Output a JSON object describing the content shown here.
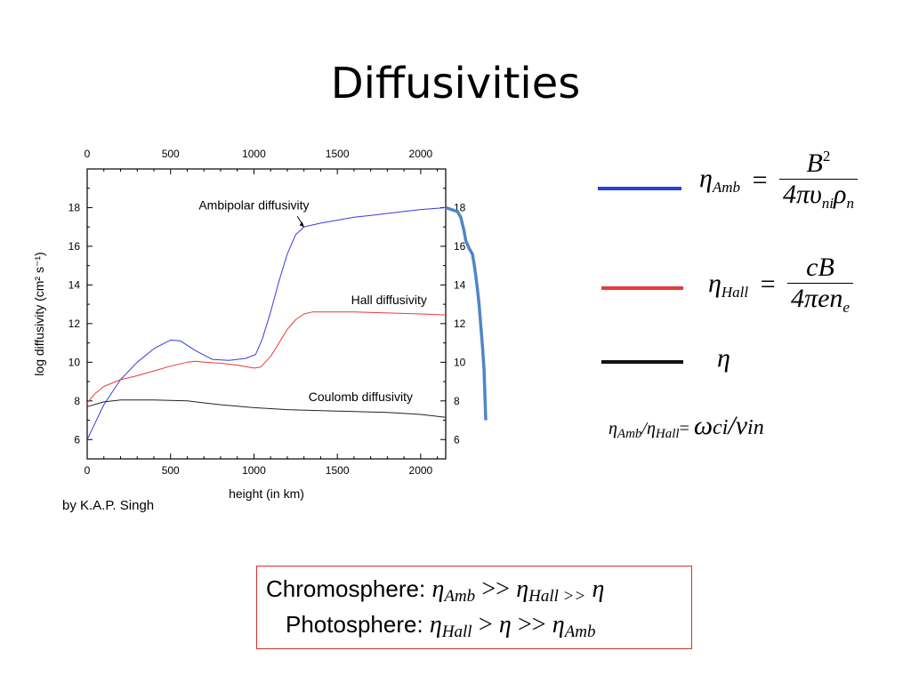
{
  "slide": {
    "title": "Diffusivities",
    "credit": "by K.A.P. Singh"
  },
  "colors": {
    "ambipolar": "#3a3ae0",
    "hall": "#e63a3a",
    "coulomb": "#222222",
    "overlay": "#4f86c6",
    "box_border": "#d9302c"
  },
  "legend": {
    "amb": {
      "eta": "η",
      "sub": "Amb",
      "eq": "=",
      "num": "B",
      "num_sup": "2",
      "den_pre": "4πυ",
      "den_sub1": "ni",
      "den_mid": "ρ",
      "den_sub2": "n"
    },
    "hall": {
      "eta": "η",
      "sub": "Hall",
      "eq": "=",
      "num": "cB",
      "den_pre": "4πen",
      "den_sub": "e"
    },
    "coulomb": {
      "eta": "η"
    }
  },
  "ratio": {
    "eta1": "η",
    "sub1": "Amb",
    "slash": "/",
    "eta2": "η",
    "sub2": "Hall",
    "eq": "=",
    "omega": "ω",
    "ci": "ci",
    "slash2": "/",
    "nu": "ν",
    "in": "in"
  },
  "summary": {
    "chromo_label": "Chromosphere:",
    "chromo_eta1": "η",
    "chromo_sub1": "Amb",
    "chromo_op1": ">>",
    "chromo_eta2": "η",
    "chromo_sub2": "Hall >>",
    "chromo_eta3": "η",
    "photo_label": "Photosphere:",
    "photo_eta1": "η",
    "photo_sub1": "Hall",
    "photo_op1": ">",
    "photo_eta2": "η",
    "photo_op2": ">>",
    "photo_eta3": "η",
    "photo_sub3": "Amb"
  },
  "chart_data": {
    "type": "line",
    "xlabel": "height (in km)",
    "ylabel": "log diffusivity (cm² s⁻¹)",
    "xlim": [
      0,
      2150
    ],
    "ylim": [
      5,
      20
    ],
    "x_ticks": [
      0,
      500,
      1000,
      1500,
      2000
    ],
    "y_ticks": [
      6,
      8,
      10,
      12,
      14,
      16,
      18
    ],
    "x_tick_labels": [
      "0",
      "500",
      "1000",
      "1500",
      "2000"
    ],
    "y_tick_labels": [
      "6",
      "8",
      "10",
      "12",
      "14",
      "16",
      "18"
    ],
    "annotations": {
      "ambipolar": "Ambipolar diffusivity",
      "hall": "Hall diffusivity",
      "coulomb": "Coulomb diffusivity"
    },
    "series": [
      {
        "name": "Ambipolar diffusivity",
        "color": "#3a3ae0",
        "x": [
          0,
          100,
          200,
          300,
          400,
          500,
          560,
          650,
          750,
          850,
          950,
          1010,
          1050,
          1100,
          1150,
          1200,
          1250,
          1300,
          1350,
          1400,
          1500,
          1600,
          1700,
          1800,
          1900,
          2000,
          2150
        ],
        "y": [
          6.0,
          7.8,
          9.1,
          10.0,
          10.7,
          11.15,
          11.1,
          10.6,
          10.15,
          10.1,
          10.2,
          10.4,
          11.2,
          12.6,
          14.2,
          15.6,
          16.6,
          17.0,
          17.1,
          17.2,
          17.35,
          17.5,
          17.6,
          17.7,
          17.8,
          17.9,
          18.0
        ]
      },
      {
        "name": "Hall diffusivity",
        "color": "#e63a3a",
        "x": [
          0,
          50,
          100,
          200,
          300,
          400,
          500,
          600,
          650,
          700,
          800,
          900,
          1000,
          1040,
          1100,
          1150,
          1200,
          1250,
          1300,
          1350,
          1400,
          1600,
          1800,
          2000,
          2150
        ],
        "y": [
          7.9,
          8.4,
          8.75,
          9.1,
          9.3,
          9.55,
          9.8,
          10.0,
          10.05,
          10.0,
          9.95,
          9.85,
          9.7,
          9.75,
          10.3,
          11.0,
          11.7,
          12.2,
          12.5,
          12.6,
          12.6,
          12.6,
          12.55,
          12.5,
          12.45
        ]
      },
      {
        "name": "Coulomb diffusivity",
        "color": "#222222",
        "x": [
          0,
          100,
          200,
          400,
          600,
          700,
          800,
          1000,
          1200,
          1400,
          1600,
          1800,
          2000,
          2150
        ],
        "y": [
          7.7,
          7.95,
          8.05,
          8.05,
          8.0,
          7.9,
          7.8,
          7.65,
          7.55,
          7.5,
          7.45,
          7.4,
          7.3,
          7.15
        ]
      },
      {
        "name": "overlay",
        "color": "#4f86c6",
        "x": [
          2150,
          2220,
          2240,
          2260,
          2270,
          2290,
          2310,
          2320,
          2330,
          2340,
          2350,
          2360,
          2370,
          2380,
          2390
        ],
        "y": [
          18.0,
          17.8,
          17.5,
          16.8,
          16.3,
          15.9,
          15.6,
          15.1,
          14.5,
          13.8,
          13.0,
          11.9,
          10.9,
          9.6,
          7.0
        ]
      }
    ]
  }
}
